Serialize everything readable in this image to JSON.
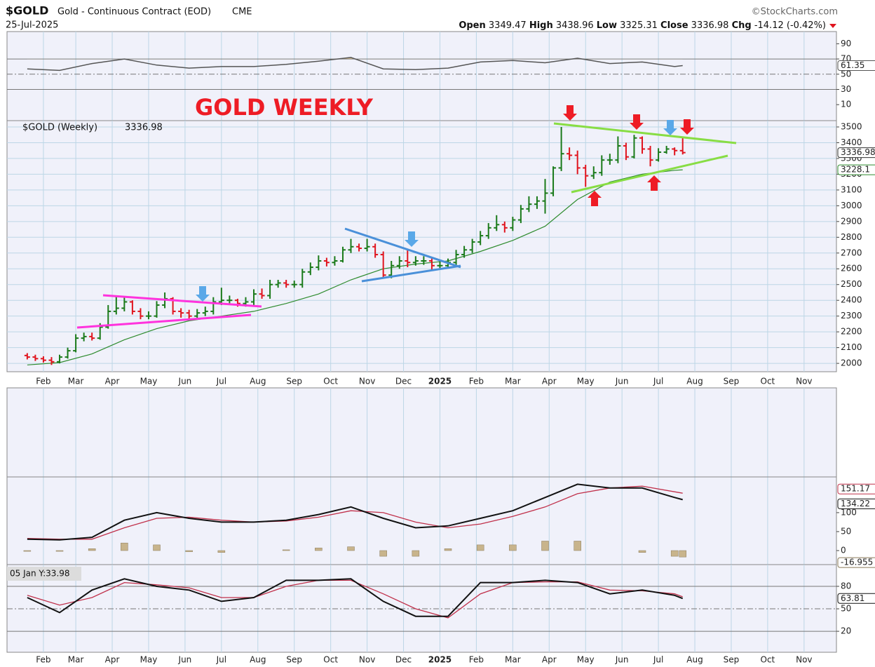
{
  "header": {
    "symbol": "$GOLD",
    "name": "Gold - Continuous Contract (EOD)",
    "exchange": "CME",
    "source": "©StockCharts.com",
    "date": "25-Jul-2025",
    "open_label": "Open",
    "high_label": "High",
    "low_label": "Low",
    "close_label": "Close",
    "change_label": "Chg",
    "change": "-14.12 (-0.42%)"
  },
  "chart_data": [
    {
      "type": "line",
      "x": [
        0,
        4,
        8,
        12,
        16,
        20,
        24,
        28,
        32,
        36,
        40,
        44,
        48,
        52,
        56,
        60,
        64,
        68,
        72,
        76,
        80,
        81
      ],
      "values": [
        57,
        55,
        64,
        70,
        62,
        58,
        60,
        60,
        63,
        67,
        72,
        57,
        56,
        58,
        66,
        68,
        65,
        71,
        64,
        66,
        60,
        61.35
      ],
      "color": "#555555",
      "fill_color": "#c8b48c",
      "fill_above": 70,
      "ylim": [
        -11,
        106
      ],
      "yticks": [
        10,
        30,
        50,
        70,
        90
      ],
      "reference_lines": [
        {
          "value": 70,
          "style": "solid"
        },
        {
          "value": 50,
          "style": "dashdot"
        },
        {
          "value": 30,
          "style": "solid"
        }
      ]
    },
    {
      "type": "ohlc",
      "legend_label": "$GOLD (Weekly)",
      "annotation": "GOLD WEEKLY",
      "up_color": "#1a7a1a",
      "down_color": "#e0141e",
      "open": [
        2050,
        2040,
        2030,
        2020,
        2010,
        2040,
        2080,
        2160,
        2170,
        2160,
        2230,
        2330,
        2350,
        2390,
        2330,
        2300,
        2300,
        2370,
        2410,
        2330,
        2320,
        2300,
        2320,
        2330,
        2390,
        2400,
        2400,
        2380,
        2390,
        2440,
        2430,
        2500,
        2510,
        2500,
        2500,
        2580,
        2610,
        2650,
        2640,
        2650,
        2720,
        2740,
        2730,
        2740,
        2690,
        2560,
        2620,
        2650,
        2640,
        2650,
        2650,
        2620,
        2620,
        2640,
        2690,
        2720,
        2770,
        2810,
        2860,
        2880,
        2860,
        2910,
        2980,
        3010,
        3030,
        3080,
        3240,
        3330,
        3320,
        3240,
        3190,
        3210,
        3290,
        3290,
        3380,
        3310,
        3430,
        3360,
        3290,
        3340,
        3360,
        3349.47
      ],
      "high": [
        2065,
        2055,
        2045,
        2040,
        2055,
        2100,
        2185,
        2195,
        2195,
        2255,
        2370,
        2430,
        2420,
        2400,
        2350,
        2330,
        2395,
        2450,
        2420,
        2350,
        2340,
        2345,
        2360,
        2420,
        2480,
        2430,
        2410,
        2420,
        2470,
        2475,
        2530,
        2530,
        2530,
        2525,
        2600,
        2640,
        2685,
        2670,
        2680,
        2740,
        2790,
        2760,
        2790,
        2760,
        2710,
        2650,
        2680,
        2720,
        2680,
        2680,
        2670,
        2650,
        2665,
        2720,
        2745,
        2790,
        2840,
        2890,
        2940,
        2900,
        2930,
        3005,
        3060,
        3060,
        3170,
        3250,
        3500,
        3370,
        3350,
        3260,
        3250,
        3320,
        3330,
        3440,
        3400,
        3450,
        3440,
        3380,
        3365,
        3380,
        3370,
        3438.96
      ],
      "low": [
        2025,
        2015,
        2005,
        1990,
        2000,
        2030,
        2070,
        2140,
        2145,
        2150,
        2220,
        2310,
        2330,
        2310,
        2280,
        2280,
        2290,
        2350,
        2310,
        2290,
        2280,
        2285,
        2300,
        2310,
        2370,
        2370,
        2360,
        2360,
        2370,
        2410,
        2410,
        2480,
        2480,
        2480,
        2480,
        2560,
        2590,
        2615,
        2620,
        2640,
        2700,
        2710,
        2710,
        2670,
        2540,
        2540,
        2600,
        2610,
        2620,
        2625,
        2590,
        2600,
        2605,
        2625,
        2670,
        2700,
        2750,
        2790,
        2840,
        2830,
        2840,
        2890,
        2960,
        2980,
        2950,
        3060,
        3220,
        3290,
        3200,
        3120,
        3170,
        3190,
        3260,
        3270,
        3290,
        3300,
        3330,
        3250,
        3280,
        3330,
        3320,
        3325.31
      ],
      "close": [
        2040,
        2030,
        2020,
        2010,
        2040,
        2080,
        2160,
        2170,
        2160,
        2230,
        2330,
        2350,
        2390,
        2330,
        2300,
        2300,
        2370,
        2410,
        2330,
        2320,
        2300,
        2320,
        2330,
        2390,
        2400,
        2400,
        2380,
        2390,
        2440,
        2430,
        2500,
        2510,
        2500,
        2500,
        2580,
        2610,
        2650,
        2640,
        2650,
        2720,
        2740,
        2730,
        2740,
        2690,
        2560,
        2620,
        2650,
        2640,
        2650,
        2650,
        2620,
        2620,
        2640,
        2690,
        2720,
        2770,
        2810,
        2860,
        2880,
        2860,
        2910,
        2980,
        3010,
        3030,
        3080,
        3240,
        3330,
        3320,
        3240,
        3190,
        3210,
        3290,
        3290,
        3380,
        3310,
        3430,
        3360,
        3290,
        3340,
        3360,
        3350,
        3336.98
      ],
      "ma": {
        "x": [
          0,
          4,
          8,
          12,
          16,
          20,
          24,
          28,
          32,
          36,
          40,
          44,
          48,
          52,
          56,
          60,
          64,
          68,
          72,
          76,
          80,
          81
        ],
        "values": [
          1990,
          2005,
          2060,
          2150,
          2220,
          2270,
          2300,
          2330,
          2380,
          2440,
          2530,
          2600,
          2630,
          2650,
          2710,
          2780,
          2870,
          3040,
          3150,
          3200,
          3225,
          3228.1
        ],
        "color": "#2e8b2e"
      },
      "ylim": [
        1947,
        3540
      ],
      "yticks": [
        2000,
        2100,
        2200,
        2300,
        2400,
        2500,
        2600,
        2700,
        2800,
        2900,
        3000,
        3100,
        3200,
        3300,
        3400,
        3500
      ],
      "grid": true,
      "xlim": [
        -2.5,
        100
      ],
      "xticks": [
        {
          "value": 2,
          "label": "Feb"
        },
        {
          "value": 6,
          "label": "Mar"
        },
        {
          "value": 10.5,
          "label": "Apr"
        },
        {
          "value": 15,
          "label": "May"
        },
        {
          "value": 19.5,
          "label": "Jun"
        },
        {
          "value": 24,
          "label": "Jul"
        },
        {
          "value": 28.5,
          "label": "Aug"
        },
        {
          "value": 33,
          "label": "Sep"
        },
        {
          "value": 37.5,
          "label": "Oct"
        },
        {
          "value": 42,
          "label": "Nov"
        },
        {
          "value": 46.5,
          "label": "Dec"
        },
        {
          "value": 51,
          "label": "2025"
        },
        {
          "value": 55.5,
          "label": "Feb"
        },
        {
          "value": 60,
          "label": "Mar"
        },
        {
          "value": 64.5,
          "label": "Apr"
        },
        {
          "value": 69,
          "label": "May"
        },
        {
          "value": 73.5,
          "label": "Jun"
        },
        {
          "value": 78,
          "label": "Jul"
        },
        {
          "value": 82.5,
          "label": "Aug"
        },
        {
          "value": 87,
          "label": "Sep"
        },
        {
          "value": 91.5,
          "label": "Oct"
        },
        {
          "value": 96,
          "label": "Nov"
        }
      ]
    },
    {
      "type": "macd",
      "ylim": [
        -37,
        429
      ],
      "yticks": [
        0,
        50,
        100
      ],
      "macd": {
        "x": [
          0,
          4,
          8,
          12,
          16,
          20,
          24,
          28,
          32,
          36,
          40,
          44,
          48,
          52,
          56,
          60,
          64,
          68,
          72,
          76,
          80,
          81
        ],
        "values": [
          30,
          28,
          35,
          80,
          100,
          85,
          75,
          75,
          80,
          95,
          115,
          85,
          60,
          65,
          85,
          105,
          140,
          175,
          165,
          165,
          140,
          134.22
        ],
        "color": "#111111"
      },
      "signal": {
        "x": [
          0,
          4,
          8,
          12,
          16,
          20,
          24,
          28,
          32,
          36,
          40,
          44,
          48,
          52,
          56,
          60,
          64,
          68,
          72,
          76,
          80,
          81
        ],
        "values": [
          32,
          30,
          30,
          60,
          85,
          88,
          80,
          75,
          78,
          88,
          105,
          100,
          75,
          60,
          70,
          90,
          115,
          150,
          165,
          170,
          155,
          151.17
        ],
        "color": "#c0304a"
      },
      "histogram": {
        "x": [
          0,
          4,
          8,
          12,
          16,
          20,
          24,
          28,
          32,
          36,
          40,
          44,
          48,
          52,
          56,
          60,
          64,
          68,
          72,
          76,
          80,
          81
        ],
        "values": [
          -2,
          -2,
          5,
          20,
          15,
          -3,
          -5,
          0,
          2,
          7,
          10,
          -15,
          -15,
          5,
          15,
          15,
          25,
          25,
          0,
          -5,
          -15,
          -16.955
        ],
        "color": "#c8b48c"
      }
    },
    {
      "type": "stochastic",
      "ylim": [
        -8,
        109
      ],
      "yticks": [
        20,
        50,
        80
      ],
      "cursor_label": "05 Jan Y:33.98",
      "k": {
        "x": [
          0,
          4,
          8,
          12,
          16,
          20,
          24,
          28,
          32,
          36,
          40,
          44,
          48,
          52,
          56,
          60,
          64,
          68,
          72,
          76,
          80,
          81
        ],
        "values": [
          65,
          45,
          75,
          90,
          80,
          75,
          60,
          65,
          88,
          88,
          90,
          60,
          40,
          40,
          85,
          85,
          88,
          85,
          70,
          75,
          68,
          63.81
        ],
        "color": "#111111"
      },
      "d": {
        "x": [
          0,
          4,
          8,
          12,
          16,
          20,
          24,
          28,
          32,
          36,
          40,
          44,
          48,
          52,
          56,
          60,
          64,
          68,
          72,
          76,
          80,
          81
        ],
        "values": [
          68,
          55,
          65,
          85,
          82,
          78,
          65,
          65,
          80,
          88,
          88,
          70,
          50,
          38,
          70,
          85,
          86,
          86,
          75,
          74,
          70,
          66
        ],
        "color": "#c0304a"
      }
    }
  ]
}
